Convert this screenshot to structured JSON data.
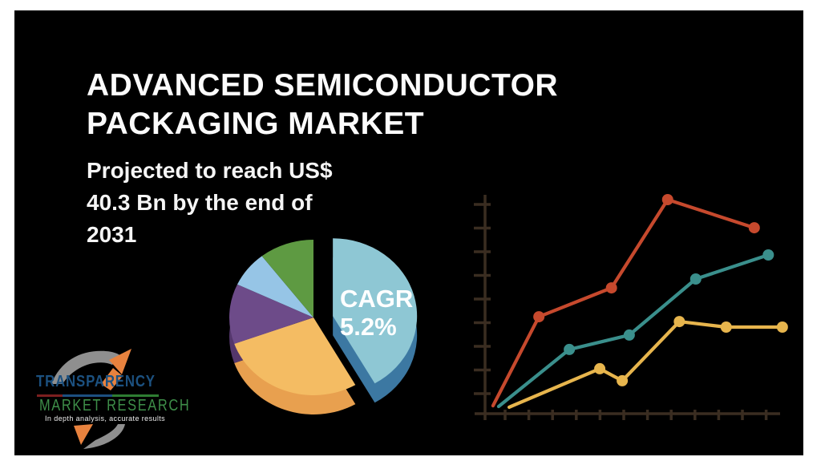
{
  "page": {
    "panel_bg": "#000000",
    "canvas_bg": "#ffffff"
  },
  "header": {
    "title_lines": [
      "ADVANCED SEMICONDUCTOR",
      "PACKAGING MARKET"
    ],
    "subtitle_lines": [
      "Projected to reach US$",
      "40.3 Bn by the end of",
      "2031"
    ]
  },
  "logo": {
    "name_line1": "TRANSPARENCY",
    "name_line2": "MARKET RESEARCH",
    "tagline": "In depth analysis, accurate results",
    "name1_color": "#1c5180",
    "name2_color": "#3e8e49",
    "arrow_color": "#e8823e",
    "swoosh_color": "#8f8f8f",
    "divider_segments": [
      {
        "color": "#7c1f1f",
        "width_pct": 21
      },
      {
        "color": "#1d4f80",
        "width_pct": 41
      },
      {
        "color": "#2e7d32",
        "width_pct": 38
      }
    ]
  },
  "chart_data": [
    {
      "type": "pie",
      "title": "",
      "label_lines": [
        "CAGR",
        "5.2%"
      ],
      "label_color": "#ffffff",
      "slices": [
        {
          "name": "highlight-blue",
          "value": 41.7,
          "color": "#8ec7d4",
          "side_color": "#3c78a2",
          "exploded": true
        },
        {
          "name": "orange",
          "value": 27.8,
          "color": "#f4bc63",
          "side_color": "#e8a04f"
        },
        {
          "name": "purple",
          "value": 12.5,
          "color": "#6d4b89",
          "side_color": "#53366b"
        },
        {
          "name": "light-blue",
          "value": 7.5,
          "color": "#96c5e6"
        },
        {
          "name": "green",
          "value": 10.5,
          "color": "#5e9a42"
        }
      ]
    },
    {
      "type": "line",
      "title": "",
      "xlabel": "",
      "ylabel": "",
      "axis_color": "#3a2d21",
      "x_tick_count": 12,
      "y_tick_count": 9,
      "grid": false,
      "legend": false,
      "xlim": [
        0,
        13
      ],
      "ylim": [
        0,
        9.3
      ],
      "series": [
        {
          "name": "red",
          "color": "#c6492d",
          "x": [
            0.34,
            2.3,
            5.4,
            7.8,
            11.5
          ],
          "y": [
            0.33,
            4.03,
            5.23,
            8.9,
            7.73
          ]
        },
        {
          "name": "teal",
          "color": "#3a8f8c",
          "x": [
            0.58,
            3.6,
            6.16,
            9.0,
            12.1
          ],
          "y": [
            0.3,
            2.67,
            3.27,
            5.6,
            6.6
          ]
        },
        {
          "name": "yellow",
          "color": "#e7b54d",
          "x": [
            1.03,
            4.9,
            5.86,
            8.3,
            10.3,
            12.7
          ],
          "y": [
            0.27,
            1.87,
            1.37,
            3.83,
            3.6,
            3.6
          ]
        }
      ]
    }
  ]
}
